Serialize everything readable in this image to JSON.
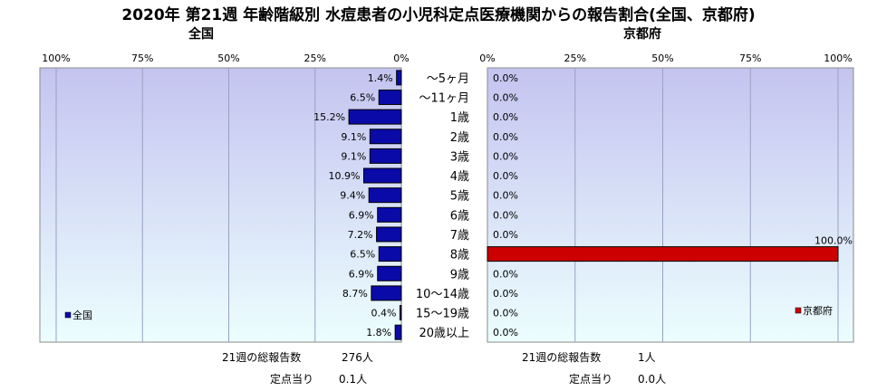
{
  "title": "2020年 第21週 年齢階級別 水痘患者の小児科定点医療機関からの報告割合(全国、京都府)",
  "chart_data": [
    {
      "type": "bar",
      "orientation": "horizontal",
      "direction": "right-to-left",
      "title": "全国",
      "categories": [
        "～5ヶ月",
        "～11ヶ月",
        "1歳",
        "2歳",
        "3歳",
        "4歳",
        "5歳",
        "6歳",
        "7歳",
        "8歳",
        "9歳",
        "10～14歳",
        "15～19歳",
        "20歳以上"
      ],
      "series": [
        {
          "name": "全国",
          "values": [
            1.4,
            6.5,
            15.2,
            9.1,
            9.1,
            10.9,
            9.4,
            6.9,
            7.2,
            6.5,
            6.9,
            8.7,
            0.4,
            1.8
          ],
          "labels": [
            "1.4%",
            "6.5%",
            "15.2%",
            "9.1%",
            "9.1%",
            "10.9%",
            "9.4%",
            "6.9%",
            "7.2%",
            "6.5%",
            "6.9%",
            "8.7%",
            "0.4%",
            "1.8%"
          ],
          "color": "#0a0aa8"
        }
      ],
      "xlim": [
        0,
        100
      ],
      "xticks": [
        "100%",
        "75%",
        "50%",
        "25%",
        "0%"
      ],
      "grid": true,
      "legend_position": "bottom-left"
    },
    {
      "type": "bar",
      "orientation": "horizontal",
      "direction": "left-to-right",
      "title": "京都府",
      "categories": [
        "～5ヶ月",
        "～11ヶ月",
        "1歳",
        "2歳",
        "3歳",
        "4歳",
        "5歳",
        "6歳",
        "7歳",
        "8歳",
        "9歳",
        "10～14歳",
        "15～19歳",
        "20歳以上"
      ],
      "series": [
        {
          "name": "京都府",
          "values": [
            0,
            0,
            0,
            0,
            0,
            0,
            0,
            0,
            0,
            100,
            0,
            0,
            0,
            0
          ],
          "labels": [
            "0.0%",
            "0.0%",
            "0.0%",
            "0.0%",
            "0.0%",
            "0.0%",
            "0.0%",
            "0.0%",
            "0.0%",
            "100.0%",
            "0.0%",
            "0.0%",
            "0.0%",
            "0.0%"
          ],
          "color": "#cc0000"
        }
      ],
      "xlim": [
        0,
        100
      ],
      "xticks": [
        "0%",
        "25%",
        "50%",
        "75%",
        "100%"
      ],
      "grid": true,
      "legend_position": "bottom-right"
    }
  ],
  "footer": {
    "national": {
      "total_label": "21週の総報告数",
      "total_value": "276人",
      "per_label": "定点当り",
      "per_value": "0.1人"
    },
    "kyoto": {
      "total_label": "21週の総報告数",
      "total_value": "1人",
      "per_label": "定点当り",
      "per_value": "0.0人"
    }
  },
  "colors": {
    "plot_gradient_top": "#c4c4f0",
    "plot_gradient_bottom": "#ecfefe",
    "national_bar": "#0a0aa8",
    "kyoto_bar": "#cc0000",
    "grid": "#9aa0c0"
  }
}
